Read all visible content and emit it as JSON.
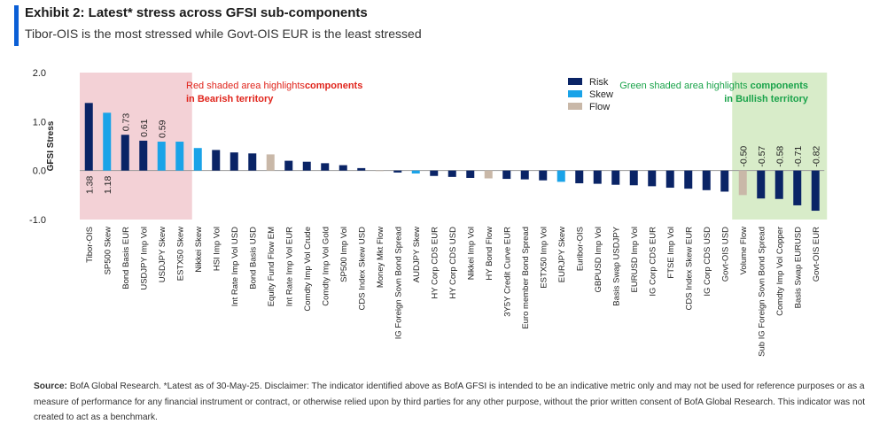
{
  "header": {
    "title": "Exhibit 2: Latest* stress across GFSI sub-components",
    "subtitle": "Tibor-OIS is the most stressed while Govt-OIS EUR is the least stressed"
  },
  "footer": {
    "source_label": "Source:",
    "source_text": "BofA Global Research. *Latest as of 30-May-25. Disclaimer: The indicator identified above as BofA GFSI is intended to be an indicative metric only and may not be used for reference purposes or as a measure of performance for any financial instrument or contract, or otherwise relied upon by third parties for any other purpose, without the prior written consent of BofA Global Research. This indicator was not created to act as a benchmark."
  },
  "chart_data": {
    "type": "bar",
    "ylabel": "GFSI Stress",
    "ylim": [
      -1.0,
      2.0
    ],
    "yticks": [
      "2.0",
      "1.0",
      "0.0",
      "-1.0"
    ],
    "grid": false,
    "legend": {
      "position": "top-right",
      "entries": [
        {
          "name": "Risk",
          "color": "#0a2466"
        },
        {
          "name": "Skew",
          "color": "#1aa3e8"
        },
        {
          "name": "Flow",
          "color": "#c9b8a8"
        }
      ]
    },
    "annotations": {
      "red_zone": {
        "plain": "Red shaded area highlights",
        "bold": "components in Bearish territory",
        "color": "#e0241b",
        "fill": "#f3d1d6"
      },
      "green_zone": {
        "plain": "Green shaded area highlights",
        "bold": "components in Bullish territory",
        "color": "#1aa34a",
        "fill": "#d8ecc9"
      }
    },
    "categories": [
      "Tibor-OIS",
      "SP500 Skew",
      "Bond Basis EUR",
      "USDJPY Imp Vol",
      "USDJPY Skew",
      "ESTX50 Skew",
      "Nikkei Skew",
      "HSI Imp Vol",
      "Int Rate Imp Vol USD",
      "Bond Basis USD",
      "Equity Fund Flow EM",
      "Int Rate Imp Vol EUR",
      "Comdty Imp Vol Crude",
      "Comdty Imp Vol Gold",
      "SP500 Imp Vol",
      "CDS Index Skew USD",
      "Money Mkt Flow",
      "IG Foreign Sovn Bond Spread",
      "AUDJPY Skew",
      "HY Corp CDS EUR",
      "HY Corp CDS USD",
      "Nikkei Imp Vol",
      "HY Bond Flow",
      "3Y5Y Credit Curve EUR",
      "Euro member Bond Spread",
      "ESTX50 Imp Vol",
      "EURJPY Skew",
      "Euribor-OIS",
      "GBPUSD Imp Vol",
      "Basis Swap USDJPY",
      "EURUSD Imp Vol",
      "IG Corp CDS EUR",
      "FTSE Imp Vol",
      "CDS Index Skew EUR",
      "IG Corp CDS USD",
      "Govt-OIS USD",
      "Volume Flow",
      "Sub IG Foreign Sovn Bond Spread",
      "Comdty Imp Vol Copper",
      "Basis Swap EURUSD",
      "Govt-OIS EUR"
    ],
    "values": [
      1.38,
      1.18,
      0.73,
      0.61,
      0.59,
      0.59,
      0.46,
      0.42,
      0.37,
      0.35,
      0.33,
      0.2,
      0.18,
      0.15,
      0.11,
      0.05,
      0.0,
      -0.04,
      -0.06,
      -0.11,
      -0.13,
      -0.15,
      -0.16,
      -0.17,
      -0.18,
      -0.2,
      -0.23,
      -0.26,
      -0.27,
      -0.29,
      -0.3,
      -0.32,
      -0.35,
      -0.37,
      -0.4,
      -0.43,
      -0.5,
      -0.57,
      -0.58,
      -0.71,
      -0.82
    ],
    "types": [
      "Risk",
      "Skew",
      "Risk",
      "Risk",
      "Skew",
      "Skew",
      "Skew",
      "Risk",
      "Risk",
      "Risk",
      "Flow",
      "Risk",
      "Risk",
      "Risk",
      "Risk",
      "Risk",
      "Flow",
      "Risk",
      "Skew",
      "Risk",
      "Risk",
      "Risk",
      "Flow",
      "Risk",
      "Risk",
      "Risk",
      "Skew",
      "Risk",
      "Risk",
      "Risk",
      "Risk",
      "Risk",
      "Risk",
      "Risk",
      "Risk",
      "Risk",
      "Flow",
      "Risk",
      "Risk",
      "Risk",
      "Risk"
    ],
    "data_labels": [
      "1.38",
      "1.18",
      "0.73",
      "0.61",
      "0.59",
      "",
      "",
      "",
      "",
      "",
      "",
      "",
      "",
      "",
      "",
      "",
      "",
      "",
      "",
      "",
      "",
      "",
      "",
      "",
      "",
      "",
      "",
      "",
      "",
      "",
      "",
      "",
      "",
      "",
      "",
      "",
      "-0.50",
      "-0.57",
      "-0.58",
      "-0.71",
      "-0.82"
    ]
  }
}
